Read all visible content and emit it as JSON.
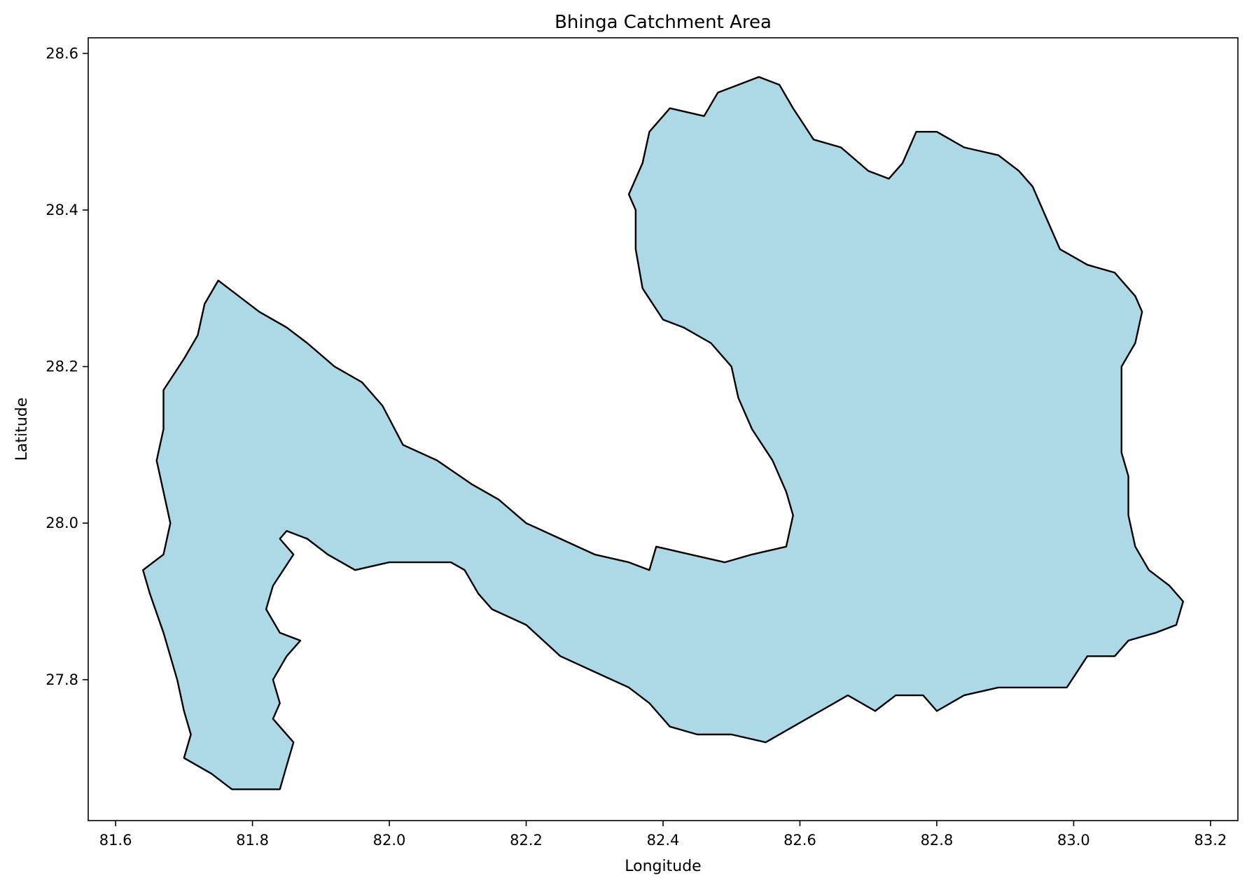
{
  "chart_data": {
    "type": "map",
    "title": "Bhinga Catchment Area",
    "xlabel": "Longitude",
    "ylabel": "Latitude",
    "xlim": [
      81.56,
      83.24
    ],
    "ylim": [
      27.62,
      28.62
    ],
    "x_ticks": [
      {
        "value": 81.6,
        "label": "81.6"
      },
      {
        "value": 81.8,
        "label": "81.8"
      },
      {
        "value": 82.0,
        "label": "82.0"
      },
      {
        "value": 82.2,
        "label": "82.2"
      },
      {
        "value": 82.4,
        "label": "82.4"
      },
      {
        "value": 82.6,
        "label": "82.6"
      },
      {
        "value": 82.8,
        "label": "82.8"
      },
      {
        "value": 83.0,
        "label": "83.0"
      },
      {
        "value": 83.2,
        "label": "83.2"
      }
    ],
    "y_ticks": [
      {
        "value": 27.8,
        "label": "27.8"
      },
      {
        "value": 28.0,
        "label": "28.0"
      },
      {
        "value": 28.2,
        "label": "28.2"
      },
      {
        "value": 28.4,
        "label": "28.4"
      },
      {
        "value": 28.6,
        "label": "28.6"
      }
    ],
    "grid": false,
    "polygon": {
      "fill": "#add8e6",
      "stroke": "#000000",
      "coordinates": [
        [
          81.84,
          27.66
        ],
        [
          81.8,
          27.66
        ],
        [
          81.77,
          27.66
        ],
        [
          81.74,
          27.68
        ],
        [
          81.7,
          27.7
        ],
        [
          81.71,
          27.73
        ],
        [
          81.7,
          27.76
        ],
        [
          81.69,
          27.8
        ],
        [
          81.67,
          27.86
        ],
        [
          81.65,
          27.91
        ],
        [
          81.64,
          27.94
        ],
        [
          81.67,
          27.96
        ],
        [
          81.68,
          28.0
        ],
        [
          81.67,
          28.04
        ],
        [
          81.66,
          28.08
        ],
        [
          81.67,
          28.12
        ],
        [
          81.67,
          28.17
        ],
        [
          81.7,
          28.21
        ],
        [
          81.72,
          28.24
        ],
        [
          81.73,
          28.28
        ],
        [
          81.75,
          28.31
        ],
        [
          81.78,
          28.29
        ],
        [
          81.81,
          28.27
        ],
        [
          81.85,
          28.25
        ],
        [
          81.88,
          28.23
        ],
        [
          81.92,
          28.2
        ],
        [
          81.96,
          28.18
        ],
        [
          81.99,
          28.15
        ],
        [
          82.02,
          28.1
        ],
        [
          82.07,
          28.08
        ],
        [
          82.12,
          28.05
        ],
        [
          82.16,
          28.03
        ],
        [
          82.2,
          28.0
        ],
        [
          82.25,
          27.98
        ],
        [
          82.3,
          27.96
        ],
        [
          82.35,
          27.95
        ],
        [
          82.38,
          27.94
        ],
        [
          82.39,
          27.97
        ],
        [
          82.44,
          27.96
        ],
        [
          82.49,
          27.95
        ],
        [
          82.53,
          27.96
        ],
        [
          82.58,
          27.97
        ],
        [
          82.59,
          28.01
        ],
        [
          82.58,
          28.04
        ],
        [
          82.56,
          28.08
        ],
        [
          82.53,
          28.12
        ],
        [
          82.51,
          28.16
        ],
        [
          82.5,
          28.2
        ],
        [
          82.47,
          28.23
        ],
        [
          82.43,
          28.25
        ],
        [
          82.4,
          28.26
        ],
        [
          82.37,
          28.3
        ],
        [
          82.36,
          28.35
        ],
        [
          82.36,
          28.4
        ],
        [
          82.35,
          28.42
        ],
        [
          82.37,
          28.46
        ],
        [
          82.38,
          28.5
        ],
        [
          82.41,
          28.53
        ],
        [
          82.46,
          28.52
        ],
        [
          82.48,
          28.55
        ],
        [
          82.51,
          28.56
        ],
        [
          82.54,
          28.57
        ],
        [
          82.57,
          28.56
        ],
        [
          82.59,
          28.53
        ],
        [
          82.62,
          28.49
        ],
        [
          82.66,
          28.48
        ],
        [
          82.7,
          28.45
        ],
        [
          82.73,
          28.44
        ],
        [
          82.75,
          28.46
        ],
        [
          82.77,
          28.5
        ],
        [
          82.8,
          28.5
        ],
        [
          82.84,
          28.48
        ],
        [
          82.89,
          28.47
        ],
        [
          82.92,
          28.45
        ],
        [
          82.94,
          28.43
        ],
        [
          82.96,
          28.39
        ],
        [
          82.98,
          28.35
        ],
        [
          83.02,
          28.33
        ],
        [
          83.06,
          28.32
        ],
        [
          83.09,
          28.29
        ],
        [
          83.1,
          28.27
        ],
        [
          83.09,
          28.23
        ],
        [
          83.07,
          28.2
        ],
        [
          83.07,
          28.16
        ],
        [
          83.07,
          28.12
        ],
        [
          83.07,
          28.09
        ],
        [
          83.08,
          28.06
        ],
        [
          83.08,
          28.01
        ],
        [
          83.09,
          27.97
        ],
        [
          83.11,
          27.94
        ],
        [
          83.14,
          27.92
        ],
        [
          83.16,
          27.9
        ],
        [
          83.15,
          27.87
        ],
        [
          83.12,
          27.86
        ],
        [
          83.08,
          27.85
        ],
        [
          83.06,
          27.83
        ],
        [
          83.02,
          27.83
        ],
        [
          82.99,
          27.79
        ],
        [
          82.94,
          27.79
        ],
        [
          82.89,
          27.79
        ],
        [
          82.84,
          27.78
        ],
        [
          82.8,
          27.76
        ],
        [
          82.78,
          27.78
        ],
        [
          82.74,
          27.78
        ],
        [
          82.71,
          27.76
        ],
        [
          82.67,
          27.78
        ],
        [
          82.63,
          27.76
        ],
        [
          82.59,
          27.74
        ],
        [
          82.55,
          27.72
        ],
        [
          82.5,
          27.73
        ],
        [
          82.45,
          27.73
        ],
        [
          82.41,
          27.74
        ],
        [
          82.38,
          27.77
        ],
        [
          82.35,
          27.79
        ],
        [
          82.3,
          27.81
        ],
        [
          82.25,
          27.83
        ],
        [
          82.2,
          27.87
        ],
        [
          82.15,
          27.89
        ],
        [
          82.13,
          27.91
        ],
        [
          82.11,
          27.94
        ],
        [
          82.09,
          27.95
        ],
        [
          82.05,
          27.95
        ],
        [
          82.0,
          27.95
        ],
        [
          81.95,
          27.94
        ],
        [
          81.91,
          27.96
        ],
        [
          81.88,
          27.98
        ],
        [
          81.85,
          27.99
        ],
        [
          81.84,
          27.98
        ],
        [
          81.86,
          27.96
        ],
        [
          81.83,
          27.92
        ],
        [
          81.82,
          27.89
        ],
        [
          81.84,
          27.86
        ],
        [
          81.87,
          27.85
        ],
        [
          81.85,
          27.83
        ],
        [
          81.83,
          27.8
        ],
        [
          81.84,
          27.77
        ],
        [
          81.83,
          27.75
        ],
        [
          81.86,
          27.72
        ],
        [
          81.85,
          27.69
        ]
      ]
    }
  }
}
